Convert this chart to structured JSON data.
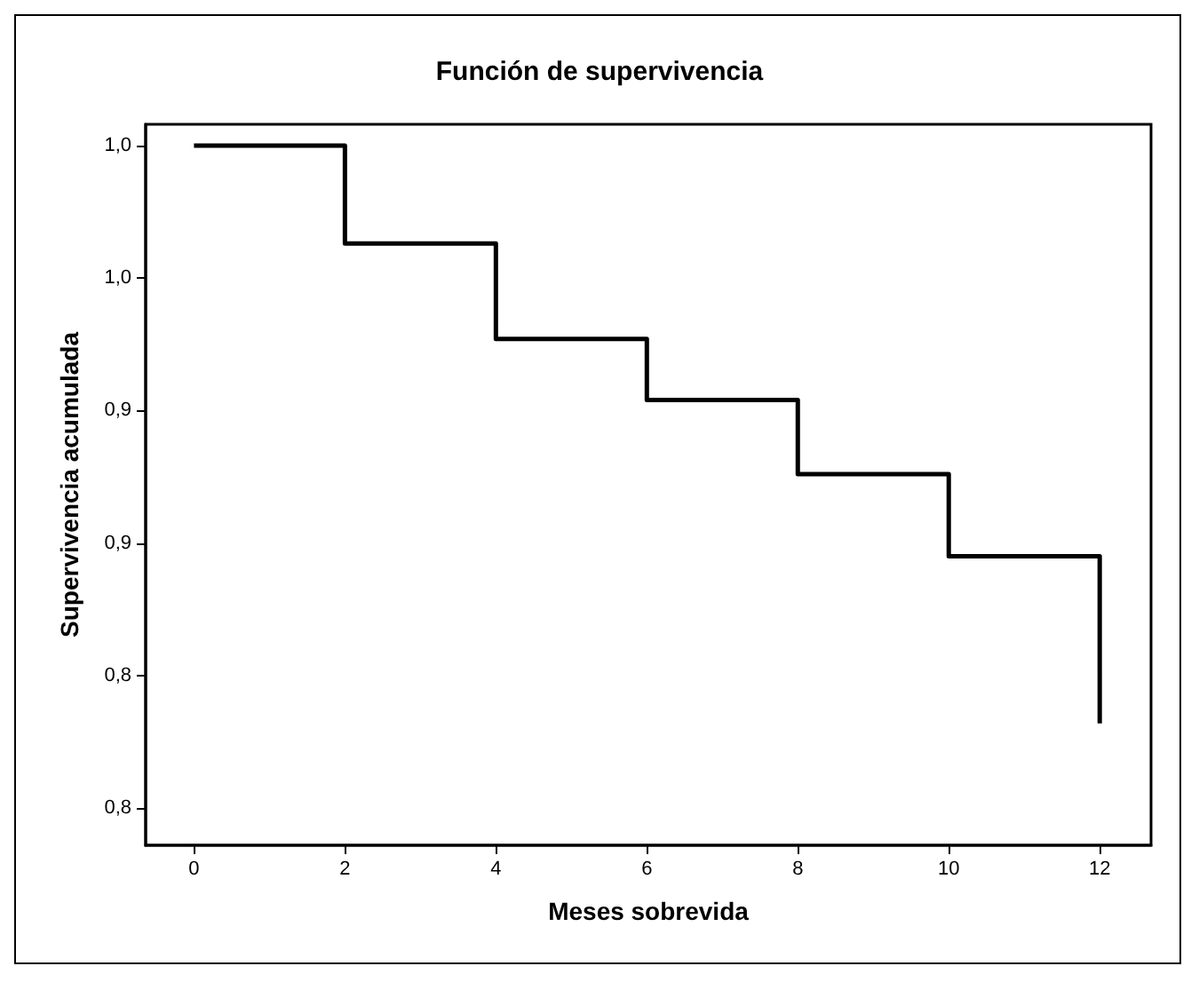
{
  "chart_data": {
    "type": "step",
    "title": "Función de supervivencia",
    "xlabel": "Meses sobrevida",
    "ylabel": "Supervivencia acumulada",
    "x": [
      0,
      2,
      4,
      6,
      8,
      10,
      12
    ],
    "series": [
      {
        "color": "#000000",
        "values": [
          1.0,
          0.963,
          0.927,
          0.904,
          0.876,
          0.845,
          0.782
        ]
      }
    ],
    "xlim": [
      -0.64,
      12.68
    ],
    "xticks": [
      0,
      2,
      4,
      6,
      8,
      10,
      12
    ],
    "ylim": [
      0.736,
      1.008
    ],
    "yticks": [
      {
        "value": 1.0,
        "label": "1,0"
      },
      {
        "value": 0.95,
        "label": "1,0"
      },
      {
        "value": 0.9,
        "label": "0,9"
      },
      {
        "value": 0.85,
        "label": "0,9"
      },
      {
        "value": 0.8,
        "label": "0,8"
      },
      {
        "value": 0.75,
        "label": "0,8"
      }
    ],
    "grid": false,
    "marker": "none",
    "line_style": "solid"
  }
}
